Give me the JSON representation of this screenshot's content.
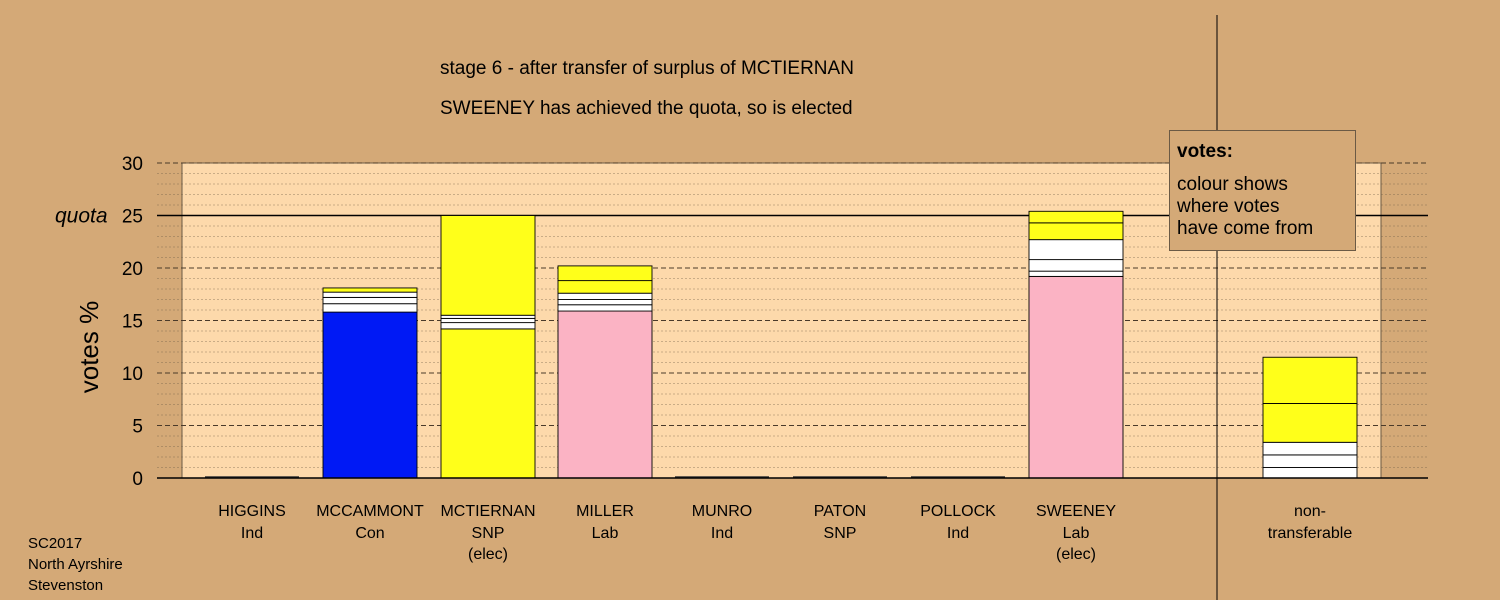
{
  "chart_data": {
    "type": "bar",
    "title": "stage 6 - after transfer of surplus of MCTIERNAN",
    "subtitle": "SWEENEY has achieved the quota, so is elected",
    "ylabel": "votes %",
    "ylim": [
      0,
      30
    ],
    "yticks": [
      0,
      5,
      10,
      15,
      20,
      25,
      30
    ],
    "quota": 25,
    "quota_label": "quota",
    "grid": true,
    "categories": [
      {
        "name": "HIGGINS",
        "party": "Ind",
        "status": "",
        "total": 0
      },
      {
        "name": "MCCAMMONT",
        "party": "Con",
        "status": "",
        "total": 18.1
      },
      {
        "name": "MCTIERNAN",
        "party": "SNP",
        "status": "(elec)",
        "total": 25.0
      },
      {
        "name": "MILLER",
        "party": "Lab",
        "status": "",
        "total": 20.2
      },
      {
        "name": "MUNRO",
        "party": "Ind",
        "status": "",
        "total": 0
      },
      {
        "name": "PATON",
        "party": "SNP",
        "status": "",
        "total": 0
      },
      {
        "name": "POLLOCK",
        "party": "Ind",
        "status": "",
        "total": 0
      },
      {
        "name": "SWEENEY",
        "party": "Lab",
        "status": "(elec)",
        "total": 25.4
      }
    ],
    "segments": [
      [],
      [
        {
          "value": 15.8,
          "color": "#0019f5"
        },
        {
          "value": 0.8,
          "color": "#ffffff"
        },
        {
          "value": 0.6,
          "color": "#ffffff"
        },
        {
          "value": 0.5,
          "color": "#ffffff"
        },
        {
          "value": 0.4,
          "color": "#ffff1a"
        }
      ],
      [
        {
          "value": 14.2,
          "color": "#ffff1a"
        },
        {
          "value": 0.6,
          "color": "#ffffff"
        },
        {
          "value": 0.4,
          "color": "#ffffff"
        },
        {
          "value": 0.3,
          "color": "#ffffff"
        },
        {
          "value": 9.5,
          "color": "#ffff1a"
        }
      ],
      [
        {
          "value": 15.9,
          "color": "#fbb3c4"
        },
        {
          "value": 0.6,
          "color": "#ffffff"
        },
        {
          "value": 0.5,
          "color": "#ffffff"
        },
        {
          "value": 0.6,
          "color": "#ffffff"
        },
        {
          "value": 1.2,
          "color": "#ffff1a"
        },
        {
          "value": 1.4,
          "color": "#ffff1a"
        }
      ],
      [],
      [],
      [],
      [
        {
          "value": 19.2,
          "color": "#fbb3c4"
        },
        {
          "value": 0.5,
          "color": "#ffffff"
        },
        {
          "value": 1.1,
          "color": "#ffffff"
        },
        {
          "value": 1.9,
          "color": "#ffffff"
        },
        {
          "value": 1.6,
          "color": "#ffff1a"
        },
        {
          "value": 1.1,
          "color": "#ffff1a"
        }
      ]
    ],
    "nontransferable": {
      "label_line1": "non-",
      "label_line2": "transferable",
      "total": 11.5,
      "segments": [
        {
          "value": 1.0,
          "color": "#ffffff"
        },
        {
          "value": 1.2,
          "color": "#ffffff"
        },
        {
          "value": 1.2,
          "color": "#ffffff"
        },
        {
          "value": 3.7,
          "color": "#ffff1a"
        },
        {
          "value": 4.4,
          "color": "#ffff1a"
        }
      ]
    }
  },
  "legend": {
    "title": "votes:",
    "line1": "colour shows",
    "line2": "where votes",
    "line3": "have come from"
  },
  "footer": {
    "line1": "SC2017",
    "line2": "North Ayrshire",
    "line3": "Stevenston"
  }
}
